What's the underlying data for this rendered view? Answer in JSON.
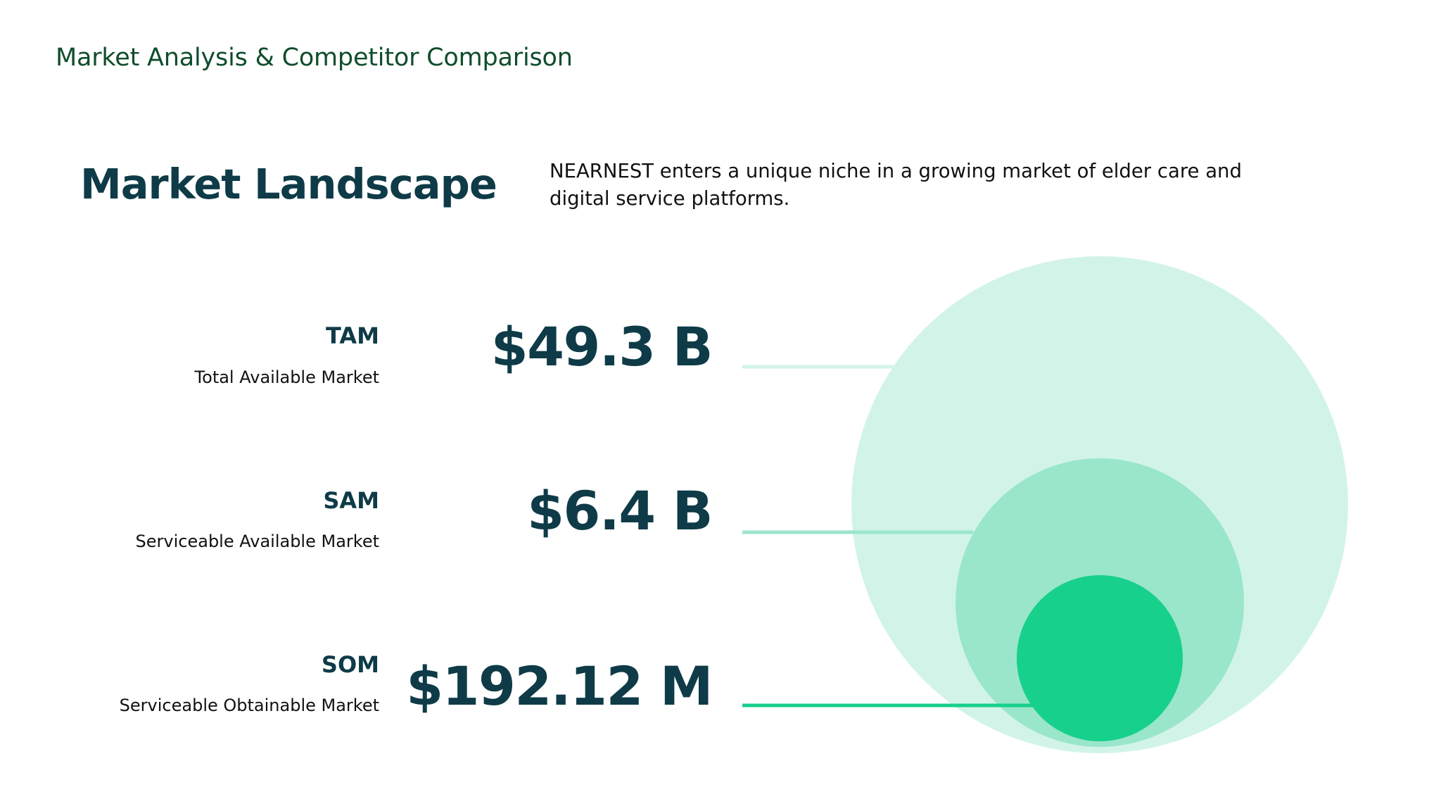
{
  "header": {
    "title": "Market Analysis & Competitor Comparison"
  },
  "section": {
    "title": "Market Landscape",
    "description": "NEARNEST enters a unique niche in a growing market of elder care and digital service platforms."
  },
  "markets": [
    {
      "key": "tam",
      "label": "TAM",
      "name": "Total Available Market",
      "value": "$49.3 B",
      "color": "#d2f4e8",
      "line_color": "#d2f4e8"
    },
    {
      "key": "sam",
      "label": "SAM",
      "name": "Serviceable Available Market",
      "value": "$6.4 B",
      "color": "#9ae6cb",
      "line_color": "#9ae6cb"
    },
    {
      "key": "som",
      "label": "SOM",
      "name": "Serviceable Obtainable Market",
      "value": "$192.12 M",
      "color": "#17d08c",
      "line_color": "#17d08c"
    }
  ],
  "colors": {
    "header": "#0f4d2b",
    "title": "#0e3b47",
    "text": "#111111"
  }
}
